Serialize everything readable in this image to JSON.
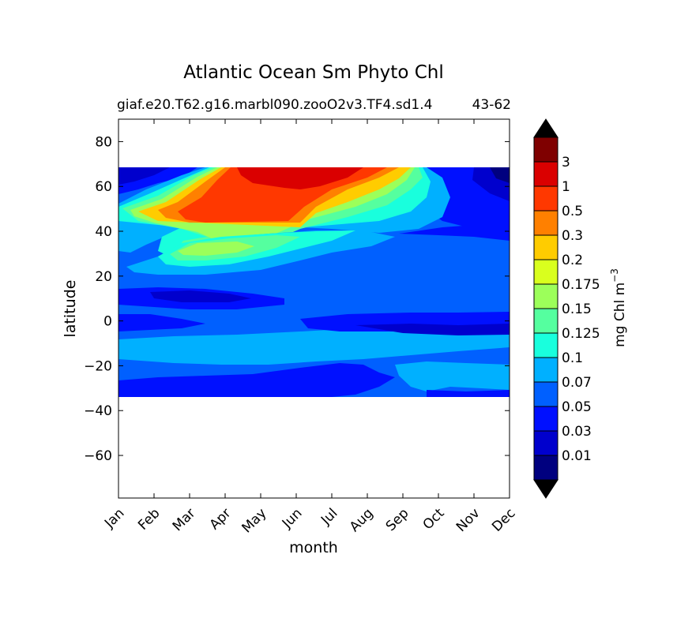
{
  "title": "Atlantic Ocean Sm Phyto Chl",
  "subtitle_left": "giaf.e20.T62.g16.marbl090.zooO2v3.TF4.sd1.4",
  "subtitle_right": "43-62",
  "chart_data": {
    "type": "heatmap",
    "title": "Atlantic Ocean Sm Phyto Chl",
    "xlabel": "month",
    "ylabel": "latitude",
    "x_categories": [
      "Jan",
      "Feb",
      "Mar",
      "Apr",
      "May",
      "Jun",
      "Jul",
      "Aug",
      "Sep",
      "Oct",
      "Nov",
      "Dec"
    ],
    "ylim": [
      -79,
      90
    ],
    "y_ticks": [
      80,
      60,
      40,
      20,
      0,
      -20,
      -40,
      -60
    ],
    "y_tick_labels": [
      "80",
      "60",
      "40",
      "20",
      "0",
      "−20",
      "−40",
      "−60"
    ],
    "data_lat_range": [
      -34,
      69
    ],
    "colorbar": {
      "label": "mg Chl m",
      "label_exponent": "−3",
      "levels": [
        0.01,
        0.03,
        0.05,
        0.07,
        0.1,
        0.125,
        0.15,
        0.175,
        0.2,
        0.3,
        0.5,
        1,
        3
      ],
      "tick_labels": [
        "0.01",
        "0.03",
        "0.05",
        "0.07",
        "0.1",
        "0.125",
        "0.15",
        "0.175",
        "0.2",
        "0.3",
        "0.5",
        "1",
        "3"
      ],
      "colors": [
        "#00007f",
        "#0000cd",
        "#0010ff",
        "#0060ff",
        "#00b0ff",
        "#19ffdd",
        "#55ff9f",
        "#9cff5a",
        "#d9ff1e",
        "#ffcc00",
        "#ff8000",
        "#ff3800",
        "#da0000",
        "#7f0000"
      ],
      "extend": "both"
    }
  }
}
